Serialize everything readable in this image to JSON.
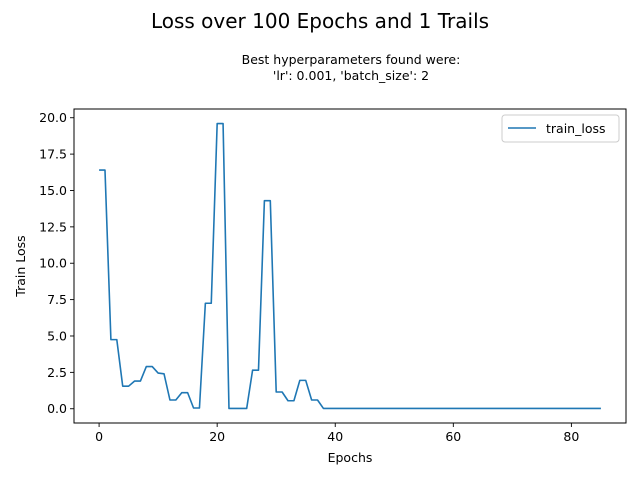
{
  "chart_data": {
    "type": "line",
    "title": "Loss over 100 Epochs and 1 Trails",
    "subtitle_lines": [
      "Best hyperparameters found were:",
      "'lr': 0.001, 'batch_size': 2"
    ],
    "xlabel": "Epochs",
    "ylabel": "Train Loss",
    "xlim": [
      -4.25,
      89.25
    ],
    "ylim": [
      -0.98,
      20.6
    ],
    "x_ticks": [
      0,
      20,
      40,
      60,
      80
    ],
    "y_ticks": [
      0.0,
      2.5,
      5.0,
      7.5,
      10.0,
      12.5,
      15.0,
      17.5,
      20.0
    ],
    "x_tick_labels": [
      "0",
      "20",
      "40",
      "60",
      "80"
    ],
    "y_tick_labels": [
      "0.0",
      "2.5",
      "5.0",
      "7.5",
      "10.0",
      "12.5",
      "15.0",
      "17.5",
      "20.0"
    ],
    "grid": false,
    "legend_position": "top-right",
    "series": [
      {
        "name": "train_loss",
        "color": "#1f77b4",
        "x": [
          0,
          1,
          2,
          3,
          4,
          5,
          6,
          7,
          8,
          9,
          10,
          11,
          12,
          13,
          14,
          15,
          16,
          17,
          18,
          19,
          20,
          21,
          22,
          23,
          24,
          25,
          26,
          27,
          28,
          29,
          30,
          31,
          32,
          33,
          34,
          35,
          36,
          37,
          38,
          39,
          40,
          41,
          42,
          43,
          44,
          45,
          46,
          47,
          48,
          49,
          50,
          51,
          52,
          53,
          54,
          55,
          56,
          57,
          58,
          59,
          60,
          61,
          62,
          63,
          64,
          65,
          66,
          67,
          68,
          69,
          70,
          71,
          72,
          73,
          74,
          75,
          76,
          77,
          78,
          79,
          80,
          81,
          82,
          83,
          84,
          85
        ],
        "y": [
          16.4,
          16.4,
          4.75,
          4.75,
          1.55,
          1.55,
          1.9,
          1.9,
          2.9,
          2.9,
          2.45,
          2.4,
          0.6,
          0.6,
          1.1,
          1.1,
          0.05,
          0.05,
          7.25,
          7.25,
          19.6,
          19.6,
          0.02,
          0.02,
          0.02,
          0.02,
          2.65,
          2.65,
          14.3,
          14.3,
          1.15,
          1.15,
          0.55,
          0.55,
          1.95,
          1.95,
          0.6,
          0.6,
          0.02,
          0.02,
          0.02,
          0.02,
          0.02,
          0.02,
          0.02,
          0.02,
          0.02,
          0.02,
          0.02,
          0.02,
          0.02,
          0.02,
          0.02,
          0.02,
          0.02,
          0.02,
          0.02,
          0.02,
          0.02,
          0.02,
          0.02,
          0.02,
          0.02,
          0.02,
          0.02,
          0.02,
          0.02,
          0.02,
          0.02,
          0.02,
          0.02,
          0.02,
          0.02,
          0.02,
          0.02,
          0.02,
          0.02,
          0.02,
          0.02,
          0.02,
          0.02,
          0.02,
          0.02,
          0.02,
          0.02,
          0.02
        ]
      }
    ]
  }
}
